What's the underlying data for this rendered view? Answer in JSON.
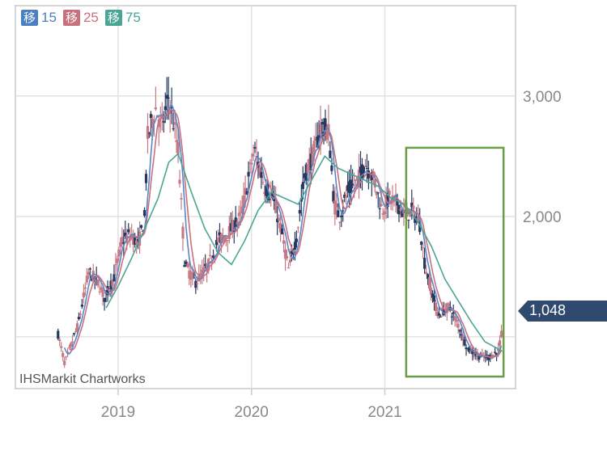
{
  "chart_data": {
    "type": "candlestick",
    "legend": [
      {
        "marker": "移",
        "label": "15",
        "color": "#4a7fc0"
      },
      {
        "marker": "移",
        "label": "25",
        "color": "#c9707f"
      },
      {
        "marker": "移",
        "label": "75",
        "color": "#4aa595"
      }
    ],
    "y_ticks": [
      {
        "value": 3000,
        "label": "3,000"
      },
      {
        "value": 2000,
        "label": "2,000"
      }
    ],
    "x_ticks": [
      {
        "value": 2019,
        "label": "2019"
      },
      {
        "value": 2020,
        "label": "2020"
      },
      {
        "value": 2021,
        "label": "2021"
      }
    ],
    "ylim": [
      570,
      3750
    ],
    "xlim": [
      2018.23,
      2021.98
    ],
    "last_price": {
      "value": 1048,
      "label": "1,048"
    },
    "source": "IHSMarkit Chartworks",
    "grid": true,
    "highlight_box": {
      "x0": 2021.16,
      "x1": 2021.89,
      "y0": 670,
      "y1": 2570,
      "color": "#6a9d45"
    },
    "trend_points": [
      [
        2018.55,
        1020
      ],
      [
        2018.6,
        780
      ],
      [
        2018.7,
        1100
      ],
      [
        2018.78,
        1540
      ],
      [
        2018.85,
        1450
      ],
      [
        2018.9,
        1320
      ],
      [
        2018.97,
        1500
      ],
      [
        2019.03,
        1800
      ],
      [
        2019.1,
        1850
      ],
      [
        2019.15,
        1760
      ],
      [
        2019.2,
        2000
      ],
      [
        2019.22,
        2650
      ],
      [
        2019.28,
        2900
      ],
      [
        2019.33,
        2750
      ],
      [
        2019.38,
        3000
      ],
      [
        2019.45,
        2550
      ],
      [
        2019.5,
        1600
      ],
      [
        2019.58,
        1450
      ],
      [
        2019.68,
        1600
      ],
      [
        2019.75,
        1800
      ],
      [
        2019.82,
        1850
      ],
      [
        2019.92,
        2000
      ],
      [
        2020.02,
        2550
      ],
      [
        2020.1,
        2250
      ],
      [
        2020.16,
        2150
      ],
      [
        2020.22,
        1900
      ],
      [
        2020.28,
        1550
      ],
      [
        2020.34,
        1850
      ],
      [
        2020.4,
        2350
      ],
      [
        2020.46,
        2500
      ],
      [
        2020.52,
        2750
      ],
      [
        2020.58,
        2700
      ],
      [
        2020.62,
        2100
      ],
      [
        2020.66,
        2000
      ],
      [
        2020.72,
        2200
      ],
      [
        2020.8,
        2300
      ],
      [
        2020.85,
        2450
      ],
      [
        2020.92,
        2300
      ],
      [
        2020.98,
        2050
      ],
      [
        2021.03,
        2150
      ],
      [
        2021.1,
        2100
      ],
      [
        2021.15,
        2000
      ],
      [
        2021.2,
        2050
      ],
      [
        2021.26,
        1950
      ],
      [
        2021.3,
        1600
      ],
      [
        2021.35,
        1380
      ],
      [
        2021.4,
        1180
      ],
      [
        2021.48,
        1250
      ],
      [
        2021.55,
        1100
      ],
      [
        2021.62,
        900
      ],
      [
        2021.7,
        840
      ],
      [
        2021.78,
        830
      ],
      [
        2021.85,
        880
      ],
      [
        2021.88,
        1048
      ]
    ],
    "ma75_points": [
      [
        2018.91,
        1240
      ],
      [
        2019.0,
        1420
      ],
      [
        2019.1,
        1650
      ],
      [
        2019.2,
        1900
      ],
      [
        2019.3,
        2150
      ],
      [
        2019.38,
        2450
      ],
      [
        2019.45,
        2520
      ],
      [
        2019.55,
        2200
      ],
      [
        2019.65,
        1900
      ],
      [
        2019.75,
        1700
      ],
      [
        2019.85,
        1600
      ],
      [
        2019.95,
        1800
      ],
      [
        2020.05,
        2050
      ],
      [
        2020.15,
        2200
      ],
      [
        2020.25,
        2150
      ],
      [
        2020.35,
        2100
      ],
      [
        2020.45,
        2300
      ],
      [
        2020.55,
        2500
      ],
      [
        2020.65,
        2400
      ],
      [
        2020.75,
        2350
      ],
      [
        2020.85,
        2300
      ],
      [
        2020.95,
        2250
      ],
      [
        2021.05,
        2150
      ],
      [
        2021.15,
        2100
      ],
      [
        2021.25,
        1950
      ],
      [
        2021.35,
        1750
      ],
      [
        2021.45,
        1480
      ],
      [
        2021.55,
        1300
      ],
      [
        2021.65,
        1120
      ],
      [
        2021.75,
        960
      ],
      [
        2021.85,
        900
      ],
      [
        2021.88,
        880
      ]
    ]
  }
}
